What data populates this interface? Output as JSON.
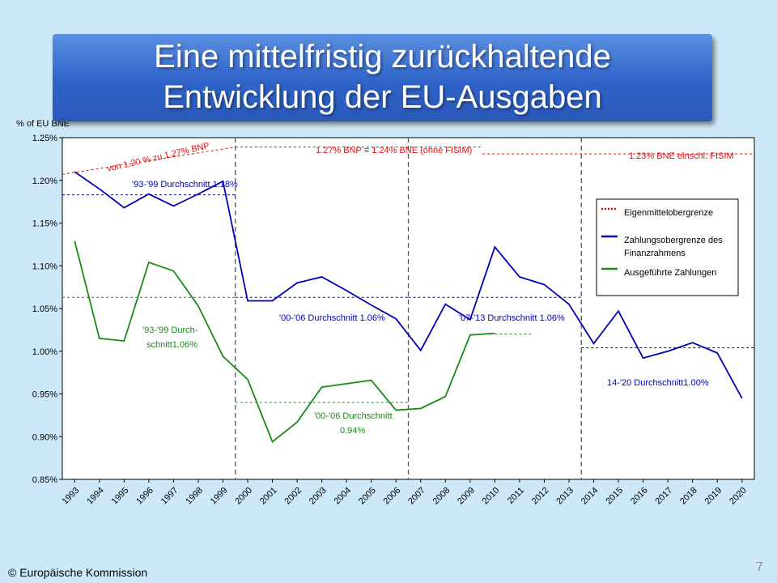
{
  "header": {
    "title": [
      "Eine mittelfristig zurückhaltende",
      "Entwicklung der EU-Ausgaben"
    ]
  },
  "footer": {
    "copyright": "© Europäische Kommission",
    "page": "7"
  },
  "chart_data": {
    "type": "line",
    "ylabel": "% of EU BNE",
    "x": [
      1993,
      1994,
      1995,
      1996,
      1997,
      1998,
      1999,
      2000,
      2001,
      2002,
      2003,
      2004,
      2005,
      2006,
      2007,
      2008,
      2009,
      2010,
      2011,
      2012,
      2013,
      2014,
      2015,
      2016,
      2017,
      2018,
      2019,
      2020
    ],
    "xlim": [
      1992.5,
      2020.5
    ],
    "xticks": [
      1993,
      1994,
      1995,
      1996,
      1997,
      1998,
      1999,
      2000,
      2001,
      2002,
      2003,
      2004,
      2005,
      2006,
      2007,
      2008,
      2009,
      2010,
      2011,
      2012,
      2013,
      2014,
      2015,
      2016,
      2017,
      2018,
      2019,
      2020
    ],
    "ylim": [
      0.85,
      1.25
    ],
    "yticks": [
      {
        "value": 0.85,
        "label": "0.85%"
      },
      {
        "value": 0.9,
        "label": "0.90%"
      },
      {
        "value": 0.95,
        "label": "0.95%"
      },
      {
        "value": 1.0,
        "label": "1.00%"
      },
      {
        "value": 1.05,
        "label": "1.05%"
      },
      {
        "value": 1.1,
        "label": "1.10%"
      },
      {
        "value": 1.15,
        "label": "1.15%"
      },
      {
        "value": 1.2,
        "label": "1.20%"
      },
      {
        "value": 1.25,
        "label": "1.25%"
      }
    ],
    "series": [
      {
        "name": "Zahlungsobergrenze des Finanzrahmens",
        "color": "#0000b4",
        "values": [
          1.21,
          1.19,
          1.168,
          1.184,
          1.17,
          1.184,
          1.199,
          1.059,
          1.059,
          1.08,
          1.087,
          1.071,
          1.054,
          1.038,
          1.001,
          1.055,
          1.037,
          1.122,
          1.087,
          1.078,
          1.055,
          1.009,
          1.047,
          0.992,
          1.0,
          1.01,
          0.998,
          0.945
        ]
      },
      {
        "name": "Ausgeführte Zahlungen",
        "color": "#188a18",
        "values": [
          1.129,
          1.015,
          1.012,
          1.104,
          1.094,
          1.053,
          0.994,
          0.967,
          0.894,
          0.917,
          0.958,
          0.962,
          0.966,
          0.931,
          0.933,
          0.947,
          1.019,
          1.021,
          null,
          null,
          null,
          null,
          null,
          null,
          null,
          null,
          null,
          null
        ]
      }
    ],
    "ceiling": {
      "name": "Eigenmittelobergrenze",
      "color": "#e01010",
      "segments": [
        {
          "x": [
            1992.5,
            1999.5
          ],
          "y": [
            1.207,
            1.239
          ],
          "label": [
            "von 1.20 % zu 1.27% BNP"
          ]
        },
        {
          "x": [
            1999.5,
            2009.5
          ],
          "y": [
            1.239,
            1.239
          ],
          "label": [
            "1.27% BNP ≡ 1.24% BNE (ohne FISIM)"
          ]
        },
        {
          "x": [
            2009.5,
            2020.5
          ],
          "y": [
            1.231,
            1.231
          ],
          "label": [
            "1.23% BNE einschl. FISIM"
          ]
        }
      ]
    },
    "reference_lines": [
      {
        "color": "#0000b4",
        "x": [
          1992.5,
          1999.5
        ],
        "y": [
          1.183,
          1.183
        ],
        "label": [
          "'93-'99 Durchschnitt 1.18%"
        ]
      },
      {
        "color": "#0000b4",
        "x": [
          1999.5,
          2006.5
        ],
        "y": [
          1.063,
          1.063
        ],
        "label": [
          "'00-'06 Durchschnitt 1.06%"
        ]
      },
      {
        "color": "#0000b4",
        "x": [
          2006.5,
          2013.5
        ],
        "y": [
          1.063,
          1.063
        ],
        "label": [
          "'07-'13 Durchschnitt 1.06%"
        ]
      },
      {
        "color": "#0000b4",
        "x": [
          2013.5,
          2020.5
        ],
        "y": [
          1.004,
          1.004
        ],
        "label": [
          "14-'20 Durchschnitt1.00%"
        ]
      },
      {
        "color": "#188a18",
        "x": [
          1992.5,
          1999.5
        ],
        "y": [
          1.063,
          1.063
        ],
        "label": [
          "'93-'99 Durch-",
          "schnitt1.06%"
        ]
      },
      {
        "color": "#188a18",
        "x": [
          1999.5,
          2006.5
        ],
        "y": [
          0.94,
          0.94
        ],
        "label": [
          "'00-'06 Durchschnitt",
          "0.94%"
        ]
      },
      {
        "color": "#188a18",
        "x": [
          2010,
          2011.5
        ],
        "y": [
          1.02,
          1.02
        ],
        "label": []
      }
    ],
    "vlines": [
      1999.5,
      2006.5,
      2013.5
    ],
    "legend": "right"
  }
}
